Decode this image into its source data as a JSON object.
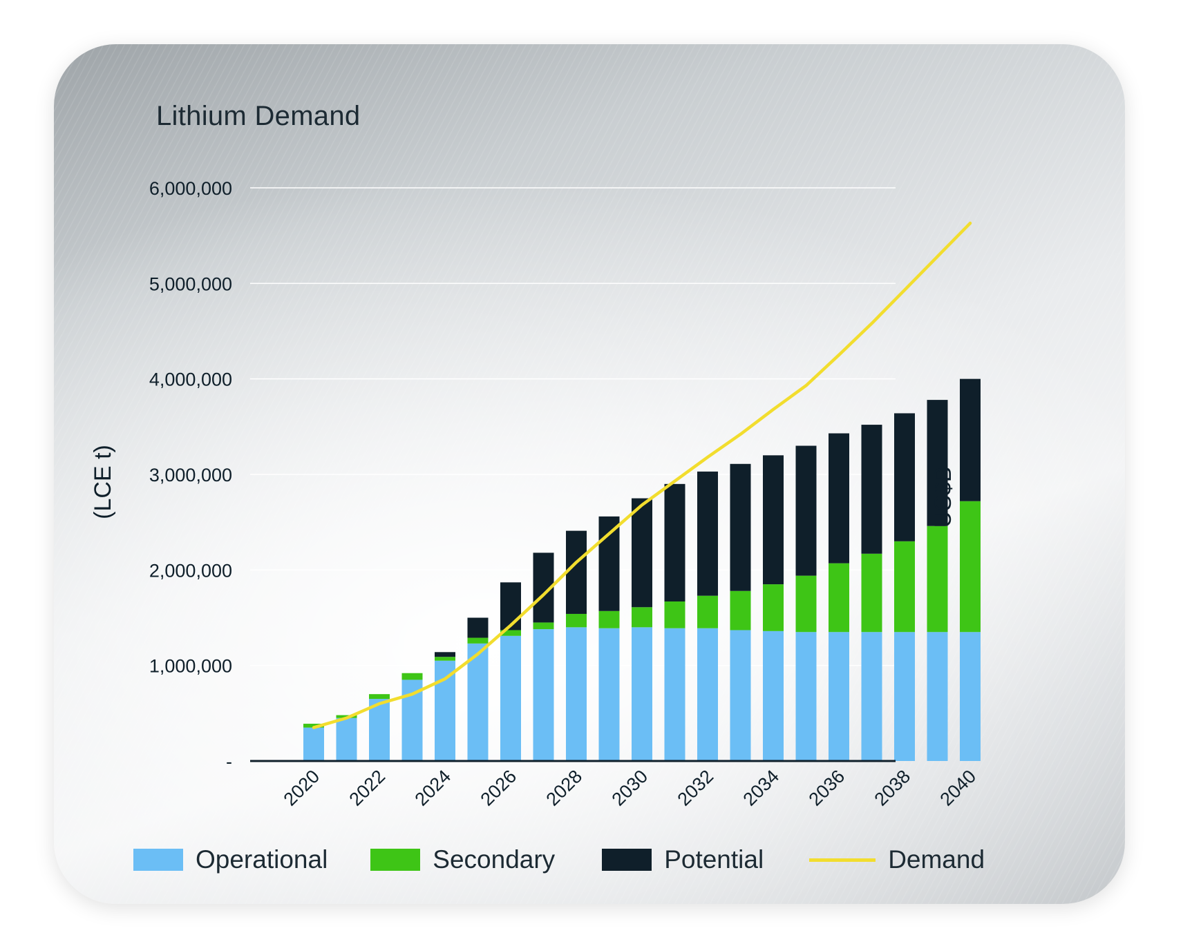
{
  "colors": {
    "operational": "#6bbef5",
    "secondary": "#3ec516",
    "potential": "#0f1f2a",
    "demand": "#f2dd2e",
    "text": "#1c2a33"
  },
  "chart_data": {
    "type": "bar",
    "stacked": true,
    "title": "Lithium Demand",
    "ylabel": "(LCE t)",
    "y2label": "US$B",
    "ylim": [
      0,
      6000000
    ],
    "yticks": [
      {
        "value": 0,
        "label": "-"
      },
      {
        "value": 1000000,
        "label": "1,000,000"
      },
      {
        "value": 2000000,
        "label": "2,000,000"
      },
      {
        "value": 3000000,
        "label": "3,000,000"
      },
      {
        "value": 4000000,
        "label": "4,000,000"
      },
      {
        "value": 5000000,
        "label": "5,000,000"
      },
      {
        "value": 6000000,
        "label": "6,000,000"
      }
    ],
    "grid": true,
    "legend_position": "bottom",
    "categories": [
      "2020",
      "2021",
      "2022",
      "2023",
      "2024",
      "2025",
      "2026",
      "2027",
      "2028",
      "2029",
      "2030",
      "2031",
      "2032",
      "2033",
      "2034",
      "2035",
      "2036",
      "2037",
      "2038",
      "2039",
      "2040"
    ],
    "xtick_labels": [
      "2020",
      "",
      "2022",
      "",
      "2024",
      "",
      "2026",
      "",
      "2028",
      "",
      "2030",
      "",
      "2032",
      "",
      "2034",
      "",
      "2036",
      "",
      "2038",
      "",
      "2040"
    ],
    "series": [
      {
        "name": "Operational",
        "kind": "bar",
        "values": [
          350000,
          450000,
          650000,
          850000,
          1050000,
          1230000,
          1310000,
          1380000,
          1400000,
          1390000,
          1400000,
          1390000,
          1390000,
          1370000,
          1360000,
          1350000,
          1350000,
          1350000,
          1350000,
          1350000,
          1350000
        ]
      },
      {
        "name": "Secondary",
        "kind": "bar",
        "values": [
          40000,
          30000,
          50000,
          70000,
          40000,
          60000,
          60000,
          70000,
          140000,
          180000,
          210000,
          280000,
          340000,
          410000,
          490000,
          590000,
          720000,
          820000,
          950000,
          1110000,
          1370000
        ]
      },
      {
        "name": "Potential",
        "kind": "bar",
        "values": [
          0,
          0,
          0,
          0,
          50000,
          210000,
          500000,
          730000,
          870000,
          990000,
          1140000,
          1230000,
          1300000,
          1330000,
          1350000,
          1360000,
          1360000,
          1350000,
          1340000,
          1320000,
          1280000
        ]
      },
      {
        "name": "Demand",
        "kind": "line",
        "values": [
          350000,
          450000,
          600000,
          700000,
          860000,
          1120000,
          1420000,
          1740000,
          2080000,
          2380000,
          2680000,
          2930000,
          3180000,
          3420000,
          3680000,
          3930000,
          4250000,
          4580000,
          4930000,
          5280000,
          5630000
        ]
      }
    ]
  }
}
